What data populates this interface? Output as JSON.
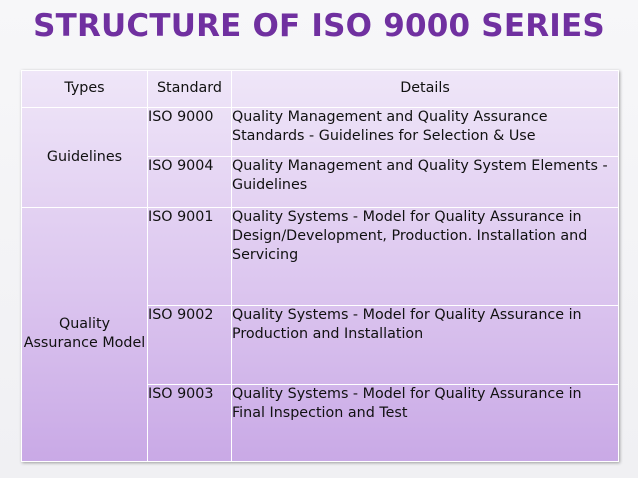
{
  "title": "STRUCTURE OF ISO 9000 SERIES",
  "table": {
    "headers": [
      "Types",
      "Standard",
      "Details"
    ],
    "groups": [
      {
        "type": "Guidelines",
        "rows": [
          {
            "standard": "ISO 9000",
            "details": "Quality Management and Quality Assurance Standards - Guidelines for Selection & Use"
          },
          {
            "standard": "ISO 9004",
            "details": "Quality Management and Quality System Elements - Guidelines"
          }
        ]
      },
      {
        "type": "Quality Assurance Model",
        "rows": [
          {
            "standard": "ISO 9001",
            "details": "Quality Systems - Model for Quality Assurance in Design/Development, Production. Installation and Servicing"
          },
          {
            "standard": "ISO 9002",
            "details": "Quality Systems - Model for Quality Assurance in Production and Installation"
          },
          {
            "standard": "ISO 9003",
            "details": "Quality Systems - Model for Quality Assurance in Final Inspection and Test"
          }
        ]
      }
    ]
  },
  "colors": {
    "title": "#7030a0",
    "table_top": "#efe6f8",
    "table_bottom": "#c9a9e6",
    "grid": "#ffffff"
  }
}
